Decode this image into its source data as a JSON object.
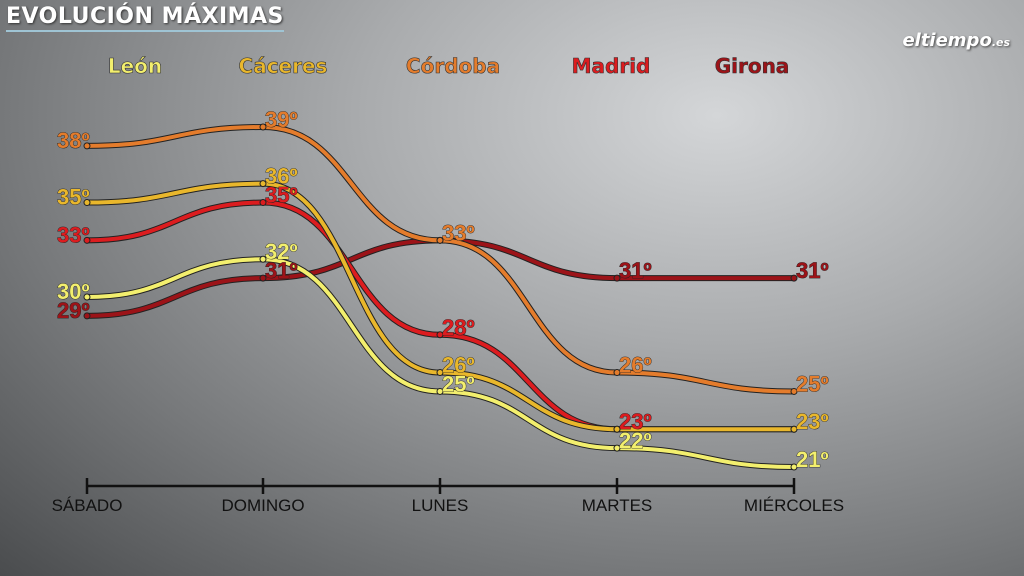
{
  "header": {
    "title": "EVOLUCIÓN MÁXIMAS",
    "logo_main": "eltiempo",
    "logo_suffix": ".es"
  },
  "chart_data": {
    "type": "line",
    "title": "EVOLUCIÓN MÁXIMAS",
    "categories": [
      "SÁBADO",
      "DOMINGO",
      "LUNES",
      "MARTES",
      "MIÉRCOLES"
    ],
    "ylim": [
      21,
      39
    ],
    "unit": "º",
    "grid": false,
    "legend_placement": "top",
    "series": [
      {
        "name": "León",
        "color": "#f3ef6e",
        "values": [
          30,
          32,
          25,
          22,
          21
        ],
        "labels": [
          "30º",
          "32º",
          "25º",
          "22º",
          "21º"
        ]
      },
      {
        "name": "Cáceres",
        "color": "#e9b72c",
        "values": [
          35,
          36,
          26,
          23,
          23
        ],
        "labels": [
          "35º",
          "36º",
          "26º",
          null,
          "23º"
        ]
      },
      {
        "name": "Córdoba",
        "color": "#e47c2c",
        "values": [
          38,
          39,
          33,
          26,
          25
        ],
        "labels": [
          "38º",
          "39º",
          "33º",
          "26º",
          "25º"
        ]
      },
      {
        "name": "Madrid",
        "color": "#dc1c1f",
        "values": [
          33,
          35,
          28,
          23,
          23
        ],
        "labels": [
          "33º",
          "35º",
          "28º",
          "23º",
          null
        ]
      },
      {
        "name": "Girona",
        "color": "#9c1318",
        "values": [
          29,
          31,
          33,
          31,
          31
        ],
        "labels": [
          "29º",
          "31º",
          null,
          "31º",
          "31º"
        ]
      }
    ]
  }
}
